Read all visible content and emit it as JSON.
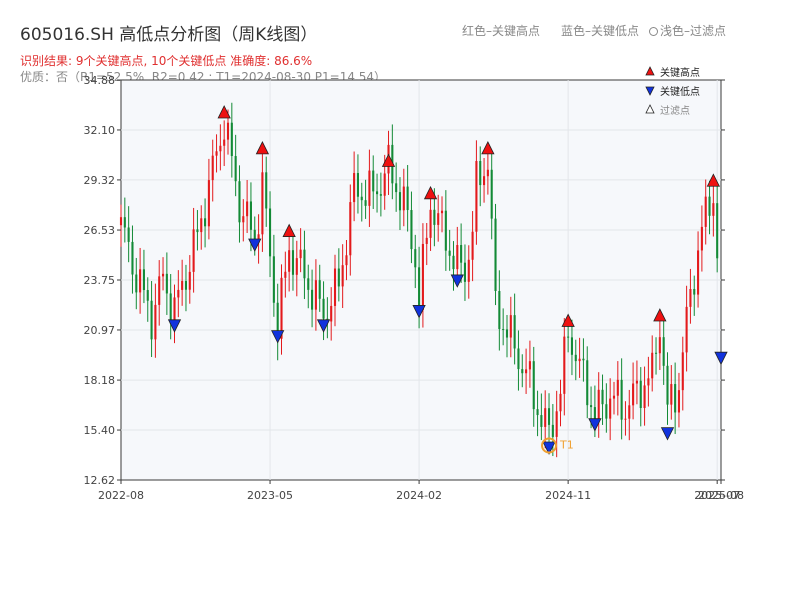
{
  "header": {
    "title": "605016.SH 高低点分析图（周K线图）",
    "hint_red": "红色–关键高点",
    "hint_blue": "蓝色–关键低点",
    "hint_filtered": "浅色–过滤点",
    "result": "识别结果: 9个关键高点, 10个关键低点   准确度: 86.6%",
    "quality": "优质：否（R1=52.5%, R2=0.42 ; T1=2024-08-30 P1=14.54）"
  },
  "colors": {
    "up": "#e31a1c",
    "down": "#138a36",
    "high_marker": "#ee1111",
    "low_marker": "#1133dd",
    "t1_ring": "#f0a030",
    "plot_bg": "#f6f8fb",
    "grid": "#e3e6ea"
  },
  "chart_data": {
    "type": "candlestick",
    "title": "605016.SH 高低点分析图（周K线图）",
    "x_ticks": [
      {
        "label": "2022-08",
        "week": 0
      },
      {
        "label": "2023-05",
        "week": 39
      },
      {
        "label": "2024-02",
        "week": 78
      },
      {
        "label": "2024-11",
        "week": 117
      },
      {
        "label": "2025-07",
        "week": 156
      },
      {
        "label": "2025-08",
        "week": 157
      }
    ],
    "y_ticks": [
      "12.62",
      "15.40",
      "18.18",
      "20.97",
      "23.75",
      "26.53",
      "29.32",
      "32.10",
      "34.88"
    ],
    "ylim": [
      12.62,
      34.88
    ],
    "x_range_weeks": [
      0,
      157
    ],
    "grid": true,
    "legend": {
      "placement": "top-right",
      "entries": [
        {
          "label": "关键高点",
          "marker": "triangle-up",
          "color": "#ee1111"
        },
        {
          "label": "关键低点",
          "marker": "triangle-down",
          "color": "#1133dd"
        },
        {
          "label": "过滤点",
          "marker": "triangle-up-hollow",
          "color": "#ffffff"
        }
      ]
    },
    "anchors": [
      [
        0,
        26.8
      ],
      [
        4,
        24.0
      ],
      [
        8,
        21.7
      ],
      [
        11,
        23.8
      ],
      [
        14,
        22.0
      ],
      [
        20,
        26.2
      ],
      [
        27,
        32.6
      ],
      [
        31,
        28.0
      ],
      [
        35,
        26.0
      ],
      [
        37,
        29.0
      ],
      [
        41,
        21.2
      ],
      [
        44,
        25.5
      ],
      [
        48,
        24.0
      ],
      [
        53,
        21.8
      ],
      [
        57,
        23.5
      ],
      [
        61,
        28.8
      ],
      [
        66,
        28.5
      ],
      [
        70,
        30.0
      ],
      [
        74,
        28.0
      ],
      [
        77,
        25.0
      ],
      [
        78,
        22.5
      ],
      [
        81,
        28.1
      ],
      [
        84,
        26.5
      ],
      [
        88,
        24.5
      ],
      [
        90,
        24.3
      ],
      [
        92,
        26.5
      ],
      [
        93,
        29.0
      ],
      [
        96,
        30.5
      ],
      [
        98,
        22.3
      ],
      [
        103,
        20.0
      ],
      [
        107,
        18.0
      ],
      [
        110,
        16.0
      ],
      [
        112,
        15.2
      ],
      [
        115,
        17.5
      ],
      [
        117,
        21.0
      ],
      [
        120,
        18.8
      ],
      [
        122,
        17.8
      ],
      [
        124,
        16.2
      ],
      [
        128,
        17.3
      ],
      [
        132,
        16.6
      ],
      [
        136,
        17.8
      ],
      [
        139,
        18.5
      ],
      [
        141,
        21.5
      ],
      [
        143,
        16.4
      ],
      [
        146,
        18.0
      ],
      [
        149,
        23.0
      ],
      [
        152,
        26.5
      ],
      [
        155,
        28.8
      ],
      [
        157,
        20.7
      ],
      [
        160,
        20.5
      ],
      [
        163,
        22.5
      ],
      [
        166,
        20.2
      ],
      [
        167,
        20.5
      ]
    ],
    "key_highs": [
      {
        "week": 27,
        "price": 32.6
      },
      {
        "week": 37,
        "price": 30.6
      },
      {
        "week": 44,
        "price": 26.0
      },
      {
        "week": 70,
        "price": 29.9
      },
      {
        "week": 81,
        "price": 28.1
      },
      {
        "week": 96,
        "price": 30.6
      },
      {
        "week": 117,
        "price": 21.0
      },
      {
        "week": 141,
        "price": 21.3
      },
      {
        "week": 155,
        "price": 28.8
      }
    ],
    "key_lows": [
      {
        "week": 14,
        "price": 21.7
      },
      {
        "week": 35,
        "price": 26.2
      },
      {
        "week": 41,
        "price": 21.1
      },
      {
        "week": 53,
        "price": 21.7
      },
      {
        "week": 78,
        "price": 22.5
      },
      {
        "week": 88,
        "price": 24.2
      },
      {
        "week": 112,
        "price": 14.9
      },
      {
        "week": 124,
        "price": 16.2
      },
      {
        "week": 143,
        "price": 15.7
      },
      {
        "week": 157,
        "price": 19.9
      }
    ],
    "t1": {
      "label": "T1",
      "date": "2024-08-30",
      "week": 112,
      "price": 14.54
    }
  }
}
